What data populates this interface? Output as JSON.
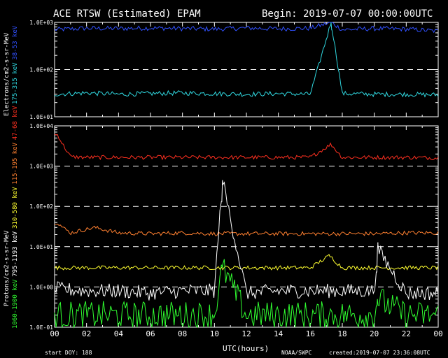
{
  "header": {
    "title": "ACE RTSW (Estimated) EPAM",
    "begin": "Begin: 2019-07-07  00:00:00UTC"
  },
  "footer": {
    "start_doy": "start DOY:  188",
    "xlabel": "UTC(hours)",
    "org": "NOAA/SWPC",
    "created": "created:2019-07-07  23:36:08UTC"
  },
  "colors": {
    "electron_38_53": "#3050ff",
    "electron_175_315": "#30d8e0",
    "proton_47_68": "#ff3020",
    "proton_115_195": "#ff8030",
    "proton_310_580": "#ffff30",
    "proton_795_1193": "#ffffff",
    "proton_1060_1900": "#30ff30"
  },
  "chart_data": [
    {
      "type": "line",
      "panel": "electrons",
      "ylabel": "Electrons/cm2-s-sr-MeV",
      "yscale": "log",
      "ylim": [
        10,
        1000
      ],
      "yticks": [
        "1.0E+01",
        "1.0E+02",
        "1.0E+03"
      ],
      "xlim": [
        0,
        24
      ],
      "xlabel": "UTC(hours)",
      "xticks": [
        "00",
        "02",
        "04",
        "06",
        "08",
        "10",
        "12",
        "14",
        "16",
        "18",
        "20",
        "22",
        "00"
      ],
      "grid": "dashed at decades",
      "series": [
        {
          "name": "38-53 keV",
          "color": "#3050ff",
          "x": [
            0,
            2,
            4,
            6,
            8,
            10,
            12,
            14,
            16,
            17.3,
            18,
            20,
            22,
            24
          ],
          "y": [
            700,
            750,
            740,
            760,
            740,
            720,
            760,
            730,
            750,
            1000,
            700,
            740,
            720,
            650
          ]
        },
        {
          "name": "175-315 keV",
          "color": "#30d8e0",
          "x": [
            0,
            2,
            4,
            6,
            8,
            10,
            12,
            14,
            16,
            17.3,
            18,
            20,
            22,
            24
          ],
          "y": [
            30,
            32,
            30,
            31,
            32,
            31,
            30,
            31,
            30,
            1000,
            31,
            30,
            30,
            29
          ]
        }
      ]
    },
    {
      "type": "line",
      "panel": "protons",
      "ylabel": "Protons/cm2-s-sr-MeV",
      "yscale": "log",
      "ylim": [
        0.1,
        10000
      ],
      "yticks": [
        "1.0E-01",
        "1.0E+00",
        "1.0E+01",
        "1.0E+02",
        "1.0E+03",
        "1.0E+04"
      ],
      "xlim": [
        0,
        24
      ],
      "xlabel": "UTC(hours)",
      "xticks": [
        "00",
        "02",
        "04",
        "06",
        "08",
        "10",
        "12",
        "14",
        "16",
        "18",
        "20",
        "22",
        "00"
      ],
      "grid": "dashed at decades",
      "series": [
        {
          "name": "47-68 keV",
          "color": "#ff3020",
          "x": [
            0.2,
            0.5,
            1,
            2,
            4,
            6,
            8,
            10,
            12,
            14,
            16,
            17.3,
            17.6,
            18,
            20,
            22,
            24
          ],
          "y": [
            6000,
            3500,
            1700,
            1650,
            1650,
            1650,
            1650,
            1650,
            1650,
            1650,
            1650,
            3500,
            2500,
            1650,
            1650,
            1650,
            1600
          ]
        },
        {
          "name": "115-195 keV",
          "color": "#ff8030",
          "x": [
            0.2,
            0.5,
            1,
            2.5,
            4,
            6,
            8,
            10,
            12,
            14,
            16,
            18,
            20,
            22,
            24
          ],
          "y": [
            40,
            30,
            22,
            30,
            22,
            21,
            22,
            21,
            21,
            21,
            21,
            21,
            21,
            22,
            22
          ]
        },
        {
          "name": "310-580 keV",
          "color": "#ffff30",
          "x": [
            0,
            2,
            4,
            6,
            8,
            10,
            10.5,
            12,
            14,
            16,
            17.2,
            18,
            20,
            22,
            24
          ],
          "y": [
            3,
            3,
            3,
            3,
            3,
            3,
            3,
            3,
            3,
            3,
            6,
            3,
            3,
            3,
            3
          ]
        },
        {
          "name": "795-1193 keV",
          "color": "#ffffff",
          "x": [
            0,
            2,
            4,
            6,
            8,
            10,
            10.5,
            12,
            14,
            16,
            18,
            20,
            20.2,
            22,
            24
          ],
          "y": [
            0.9,
            0.8,
            0.8,
            0.7,
            0.8,
            0.8,
            450,
            0.7,
            0.8,
            0.8,
            0.8,
            0.8,
            9,
            0.7,
            0.7
          ]
        },
        {
          "name": "1060-1900 keV",
          "color": "#30ff30",
          "x": [
            0,
            2,
            4,
            6,
            8,
            10,
            10.5,
            12,
            14,
            16,
            18,
            20,
            20.2,
            22,
            24
          ],
          "y": [
            0.2,
            0.2,
            0.2,
            0.2,
            0.2,
            0.2,
            3,
            0.2,
            0.2,
            0.2,
            0.2,
            0.2,
            0.5,
            0.2,
            0.2
          ]
        }
      ]
    }
  ]
}
